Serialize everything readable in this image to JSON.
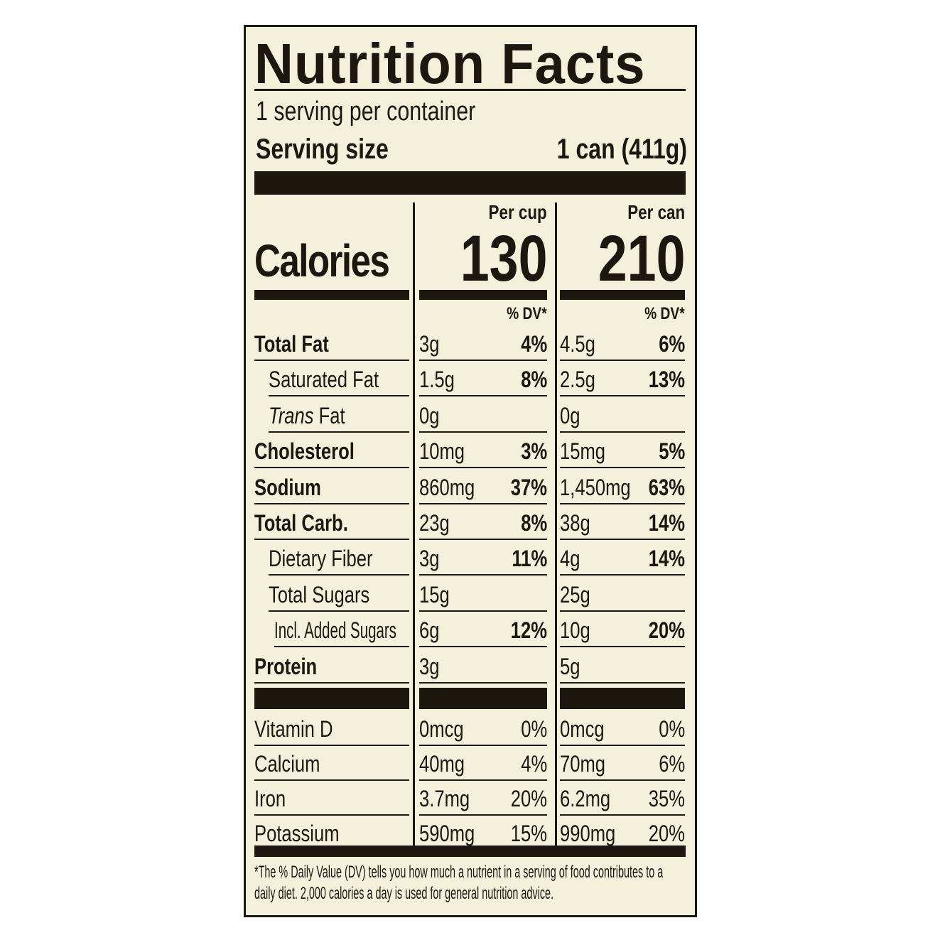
{
  "title": "Nutrition Facts",
  "servings_per_container": "1 serving per container",
  "serving_size_label": "Serving size",
  "serving_size_value": "1 can (411g)",
  "calories_label": "Calories",
  "columns": [
    {
      "header": "Per cup",
      "calories": "130",
      "dv_header": "% DV*"
    },
    {
      "header": "Per can",
      "calories": "210",
      "dv_header": "% DV*"
    }
  ],
  "nutrients": [
    {
      "name": "Total Fat",
      "bold": true,
      "indent": 0,
      "cup": [
        "3g",
        "4%"
      ],
      "can": [
        "4.5g",
        "6%"
      ]
    },
    {
      "name": "Saturated Fat",
      "bold": false,
      "indent": 1,
      "cup": [
        "1.5g",
        "8%"
      ],
      "can": [
        "2.5g",
        "13%"
      ]
    },
    {
      "name": "Trans Fat",
      "bold": false,
      "indent": 1,
      "italic_prefix": "Trans",
      "cup": [
        "0g",
        ""
      ],
      "can": [
        "0g",
        ""
      ]
    },
    {
      "name": "Cholesterol",
      "bold": true,
      "indent": 0,
      "cup": [
        "10mg",
        "3%"
      ],
      "can": [
        "15mg",
        "5%"
      ]
    },
    {
      "name": "Sodium",
      "bold": true,
      "indent": 0,
      "cup": [
        "860mg",
        "37%"
      ],
      "can": [
        "1,450mg",
        "63%"
      ]
    },
    {
      "name": "Total Carb.",
      "bold": true,
      "indent": 0,
      "cup": [
        "23g",
        "8%"
      ],
      "can": [
        "38g",
        "14%"
      ]
    },
    {
      "name": "Dietary Fiber",
      "bold": false,
      "indent": 1,
      "cup": [
        "3g",
        "11%"
      ],
      "can": [
        "4g",
        "14%"
      ]
    },
    {
      "name": "Total Sugars",
      "bold": false,
      "indent": 1,
      "cup": [
        "15g",
        ""
      ],
      "can": [
        "25g",
        ""
      ]
    },
    {
      "name": "Incl. Added Sugars",
      "bold": false,
      "indent": 2,
      "cup": [
        "6g",
        "12%"
      ],
      "can": [
        "10g",
        "20%"
      ]
    },
    {
      "name": "Protein",
      "bold": true,
      "indent": 0,
      "cup": [
        "3g",
        ""
      ],
      "can": [
        "5g",
        ""
      ]
    }
  ],
  "vitamins": [
    {
      "name": "Vitamin D",
      "cup": [
        "0mcg",
        "0%"
      ],
      "can": [
        "0mcg",
        "0%"
      ]
    },
    {
      "name": "Calcium",
      "cup": [
        "40mg",
        "4%"
      ],
      "can": [
        "70mg",
        "6%"
      ]
    },
    {
      "name": "Iron",
      "cup": [
        "3.7mg",
        "20%"
      ],
      "can": [
        "6.2mg",
        "35%"
      ]
    },
    {
      "name": "Potassium",
      "cup": [
        "590mg",
        "15%"
      ],
      "can": [
        "990mg",
        "20%"
      ]
    }
  ],
  "footnote": "*The % Daily Value (DV) tells you how much a nutrient in a serving of food contributes to a daily diet. 2,000 calories a day is used for general nutrition advice.",
  "colors": {
    "background": "#f3f1dc",
    "ink": "#1c1810"
  }
}
